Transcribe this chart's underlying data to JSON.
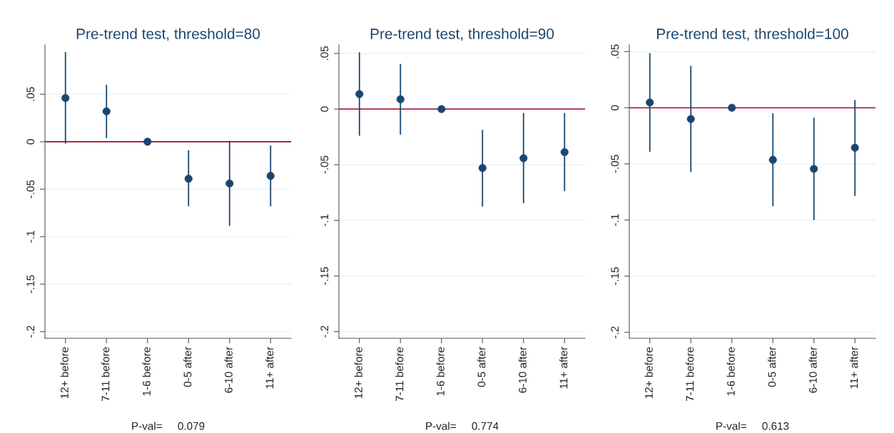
{
  "chart_data": [
    {
      "type": "scatter",
      "title": "Pre-trend test, threshold=80",
      "categories": [
        "12+ before",
        "7-11 before",
        "1-6 before",
        "0-5 after",
        "6-10 after",
        "11+ after"
      ],
      "series": [
        {
          "color": "#1a476f",
          "values": [
            0.046,
            0.032,
            0,
            -0.039,
            -0.044,
            -0.036
          ],
          "errors": [
            [
              -0.002,
              0.0945
            ],
            [
              0.004,
              0.06
            ],
            null,
            [
              -0.068,
              -0.009
            ],
            [
              -0.0885,
              0.001
            ],
            [
              -0.068,
              -0.004
            ]
          ]
        }
      ],
      "ylim": [
        -0.207,
        0.102
      ],
      "yticks": [
        {
          "value": 0.05,
          "label": ".05"
        },
        0,
        {
          "value": -0.05,
          "label": "-.05"
        },
        {
          "value": -0.1,
          "label": "-.1"
        },
        {
          "value": -0.15,
          "label": "-.15"
        },
        {
          "value": -0.2,
          "label": "-.2"
        }
      ],
      "ref_lines": [
        {
          "axis": "y",
          "value": 0,
          "color": "#b22245"
        }
      ],
      "grid": "y",
      "marker": "circle",
      "annotations": [
        "P-val=     0.079"
      ]
    },
    {
      "type": "scatter",
      "title": "Pre-trend test, threshold=90",
      "categories": [
        "12+ before",
        "7-11 before",
        "1-6 before",
        "0-5 after",
        "6-10 after",
        "11+ after"
      ],
      "series": [
        {
          "color": "#1a476f",
          "values": [
            0.0135,
            0.0088,
            0,
            -0.053,
            -0.0442,
            -0.0387
          ],
          "errors": [
            [
              -0.024,
              0.051
            ],
            [
              -0.0229,
              0.0406
            ],
            null,
            [
              -0.0876,
              -0.0186
            ],
            [
              -0.0846,
              -0.0036
            ],
            [
              -0.0737,
              -0.0036
            ]
          ]
        }
      ],
      "ylim": [
        -0.206,
        0.0577
      ],
      "yticks": [
        {
          "value": 0.05,
          "label": ".05"
        },
        0,
        {
          "value": -0.05,
          "label": "-.05"
        },
        {
          "value": -0.1,
          "label": "-.1"
        },
        {
          "value": -0.15,
          "label": "-.15"
        },
        {
          "value": -0.2,
          "label": "-.2"
        }
      ],
      "ref_lines": [
        {
          "axis": "y",
          "value": 0,
          "color": "#b22245"
        }
      ],
      "grid": "y",
      "marker": "circle",
      "annotations": [
        "P-val=     0.774"
      ]
    },
    {
      "type": "scatter",
      "title": "Pre-trend test, threshold=100",
      "categories": [
        "12+ before",
        "7-11 before",
        "1-6 before",
        "0-5 after",
        "6-10 after",
        "11+ after"
      ],
      "series": [
        {
          "color": "#1a476f",
          "values": [
            0.0047,
            -0.01,
            0,
            -0.0464,
            -0.0544,
            -0.0356
          ],
          "errors": [
            [
              -0.0392,
              0.0487
            ],
            [
              -0.0572,
              0.0373
            ],
            null,
            [
              -0.0877,
              -0.0049
            ],
            [
              -0.1,
              -0.0089
            ],
            [
              -0.0786,
              0.007
            ]
          ]
        }
      ],
      "ylim": [
        -0.2053,
        0.056
      ],
      "yticks": [
        {
          "value": 0.05,
          "label": ".05"
        },
        0,
        {
          "value": -0.05,
          "label": "-.05"
        },
        {
          "value": -0.1,
          "label": "-.1"
        },
        {
          "value": -0.15,
          "label": "-.15"
        },
        {
          "value": -0.2,
          "label": "-.2"
        }
      ],
      "ref_lines": [
        {
          "axis": "y",
          "value": 0,
          "color": "#b22245"
        }
      ],
      "grid": "y",
      "marker": "circle",
      "annotations": [
        "P-val=     0.613"
      ]
    }
  ]
}
